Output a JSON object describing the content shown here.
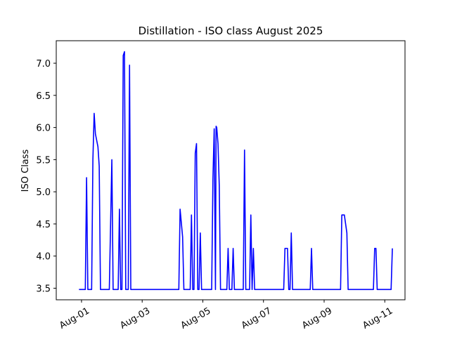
{
  "chart_data": {
    "type": "line",
    "title": "Distillation - ISO class August 2025",
    "xlabel": "",
    "ylabel": "ISO Class",
    "ylim": [
      3.32,
      7.35
    ],
    "xlim": [
      "2025-07-31T04:00",
      "2025-08-11T16:00"
    ],
    "grid": false,
    "legend": "none",
    "line_color": "#0000ff",
    "y_ticks": [
      "3.5",
      "4.0",
      "4.5",
      "5.0",
      "5.5",
      "6.0",
      "6.5",
      "7.0"
    ],
    "x_ticks": [
      "Aug-01",
      "Aug-03",
      "Aug-05",
      "Aug-07",
      "Aug-09",
      "Aug-11"
    ],
    "series": [
      {
        "points": [
          [
            "2025-07-31T22:00",
            3.48
          ],
          [
            "2025-08-01T03:00",
            3.48
          ],
          [
            "2025-08-01T04:00",
            5.22
          ],
          [
            "2025-08-01T05:00",
            3.48
          ],
          [
            "2025-08-01T08:00",
            3.48
          ],
          [
            "2025-08-01T09:00",
            5.5
          ],
          [
            "2025-08-01T10:00",
            6.22
          ],
          [
            "2025-08-01T11:00",
            5.9
          ],
          [
            "2025-08-01T13:00",
            5.7
          ],
          [
            "2025-08-01T14:00",
            5.4
          ],
          [
            "2025-08-01T15:00",
            3.48
          ],
          [
            "2025-08-01T22:00",
            3.48
          ],
          [
            "2025-08-01T23:00",
            4.5
          ],
          [
            "2025-08-02T00:00",
            5.5
          ],
          [
            "2025-08-02T01:00",
            3.48
          ],
          [
            "2025-08-02T05:00",
            3.48
          ],
          [
            "2025-08-02T06:00",
            4.73
          ],
          [
            "2025-08-02T07:00",
            3.48
          ],
          [
            "2025-08-02T08:00",
            3.48
          ],
          [
            "2025-08-02T09:00",
            7.12
          ],
          [
            "2025-08-02T10:00",
            7.18
          ],
          [
            "2025-08-02T11:00",
            3.48
          ],
          [
            "2025-08-02T13:00",
            3.48
          ],
          [
            "2025-08-02T14:00",
            6.97
          ],
          [
            "2025-08-02T15:00",
            3.48
          ],
          [
            "2025-08-04T05:00",
            3.48
          ],
          [
            "2025-08-04T06:00",
            4.73
          ],
          [
            "2025-08-04T08:00",
            4.3
          ],
          [
            "2025-08-04T09:00",
            3.48
          ],
          [
            "2025-08-04T14:00",
            3.48
          ],
          [
            "2025-08-04T15:00",
            4.64
          ],
          [
            "2025-08-04T16:00",
            3.48
          ],
          [
            "2025-08-04T17:00",
            3.48
          ],
          [
            "2025-08-04T18:00",
            5.6
          ],
          [
            "2025-08-04T19:00",
            5.75
          ],
          [
            "2025-08-04T20:00",
            3.48
          ],
          [
            "2025-08-04T21:00",
            3.48
          ],
          [
            "2025-08-04T22:00",
            4.36
          ],
          [
            "2025-08-04T23:00",
            3.48
          ],
          [
            "2025-08-05T07:00",
            3.48
          ],
          [
            "2025-08-05T08:00",
            5.2
          ],
          [
            "2025-08-05T09:00",
            5.98
          ],
          [
            "2025-08-05T10:00",
            3.48
          ],
          [
            "2025-08-05T10:30",
            6.02
          ],
          [
            "2025-08-05T11:00",
            6.0
          ],
          [
            "2025-08-05T12:00",
            5.75
          ],
          [
            "2025-08-05T13:00",
            5.1
          ],
          [
            "2025-08-05T14:00",
            3.48
          ],
          [
            "2025-08-05T19:00",
            3.48
          ],
          [
            "2025-08-05T20:00",
            4.12
          ],
          [
            "2025-08-05T21:00",
            3.48
          ],
          [
            "2025-08-05T23:00",
            3.48
          ],
          [
            "2025-08-06T00:00",
            4.12
          ],
          [
            "2025-08-06T01:00",
            3.48
          ],
          [
            "2025-08-06T08:00",
            3.48
          ],
          [
            "2025-08-06T09:00",
            5.65
          ],
          [
            "2025-08-06T10:00",
            3.48
          ],
          [
            "2025-08-06T13:00",
            3.48
          ],
          [
            "2025-08-06T14:00",
            4.64
          ],
          [
            "2025-08-06T15:00",
            3.48
          ],
          [
            "2025-08-06T16:00",
            4.12
          ],
          [
            "2025-08-06T17:00",
            3.48
          ],
          [
            "2025-08-07T16:00",
            3.48
          ],
          [
            "2025-08-07T17:00",
            4.12
          ],
          [
            "2025-08-07T19:00",
            4.12
          ],
          [
            "2025-08-07T20:00",
            3.48
          ],
          [
            "2025-08-07T21:00",
            3.48
          ],
          [
            "2025-08-07T22:00",
            4.36
          ],
          [
            "2025-08-07T23:00",
            3.48
          ],
          [
            "2025-08-08T13:00",
            3.48
          ],
          [
            "2025-08-08T14:00",
            4.12
          ],
          [
            "2025-08-08T15:00",
            3.48
          ],
          [
            "2025-08-09T13:00",
            3.48
          ],
          [
            "2025-08-09T14:00",
            4.64
          ],
          [
            "2025-08-09T16:00",
            4.64
          ],
          [
            "2025-08-09T18:00",
            4.36
          ],
          [
            "2025-08-09T19:00",
            3.48
          ],
          [
            "2025-08-10T15:00",
            3.48
          ],
          [
            "2025-08-10T16:00",
            4.12
          ],
          [
            "2025-08-10T17:00",
            4.12
          ],
          [
            "2025-08-10T18:00",
            3.48
          ],
          [
            "2025-08-11T05:00",
            3.48
          ],
          [
            "2025-08-11T06:00",
            4.12
          ]
        ]
      }
    ]
  }
}
